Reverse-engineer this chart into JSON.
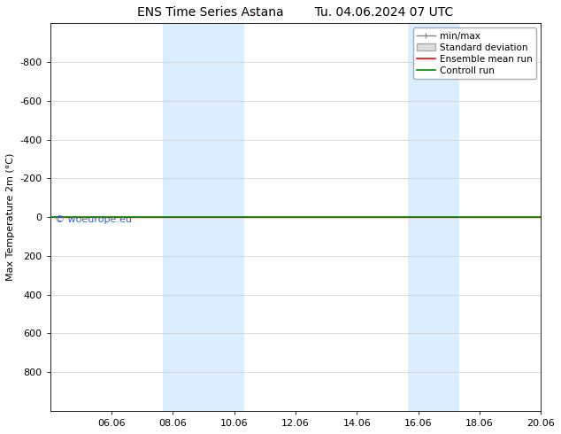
{
  "title": "ENS Time Series Astana",
  "title2": "Tu. 04.06.2024 07 UTC",
  "ylabel": "Max Temperature 2m (°C)",
  "watermark": "© woeurope.eu",
  "x_ticks_labels": [
    "06.06",
    "08.06",
    "10.06",
    "12.06",
    "14.06",
    "16.06",
    "18.06",
    "20.06"
  ],
  "x_ticks_pos": [
    6,
    8,
    10,
    12,
    14,
    16,
    18,
    20
  ],
  "xlim": [
    4,
    20
  ],
  "ylim": [
    -1000,
    1000
  ],
  "y_ticks": [
    -800,
    -600,
    -400,
    -200,
    0,
    200,
    400,
    600,
    800
  ],
  "shaded_regions": [
    {
      "xstart": 7.67,
      "xend": 10.33
    },
    {
      "xstart": 15.67,
      "xend": 17.33
    }
  ],
  "line_y": 0,
  "bg_color": "#ffffff",
  "shade_color": "#daeeff",
  "line_color_minmax": "#888888",
  "line_color_std": "#cccccc",
  "line_color_ensemble": "#ff0000",
  "line_color_control": "#008800",
  "watermark_color": "#3366cc",
  "legend_labels": [
    "min/max",
    "Standard deviation",
    "Ensemble mean run",
    "Controll run"
  ],
  "grid_color": "#cccccc",
  "title_fontsize": 10,
  "axis_fontsize": 8,
  "legend_fontsize": 7.5
}
